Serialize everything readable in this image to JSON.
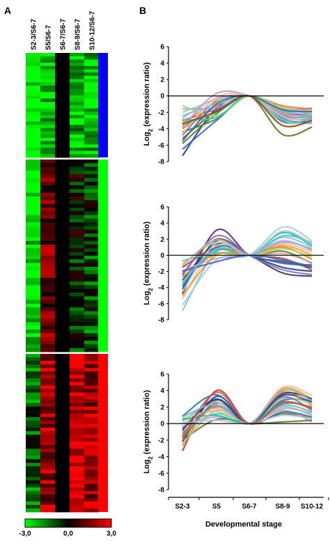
{
  "panel_labels": [
    "A",
    "B"
  ],
  "heatmap": {
    "columns": [
      "S2-3/S6-7",
      "S5/S6-7",
      "S6-7/S6-7",
      "S8-9/S6-7",
      "S10-12/S6-7"
    ],
    "scale": {
      "min_label": "-3,0",
      "mid_label": "0,0",
      "max_label": "3,0",
      "min": -3,
      "max": 3,
      "low_color": "#00ff00",
      "mid_color": "#000000",
      "high_color": "#ff0000"
    },
    "clusters": [
      {
        "bar_color": "#0000ff",
        "rows": 32,
        "profile": [
          -3.2,
          -2.4,
          0,
          -2.2,
          -2.4
        ]
      },
      {
        "bar_color": "#00ff00",
        "rows": 52,
        "profile": [
          -2.8,
          1.2,
          0,
          -0.3,
          -0.8
        ]
      },
      {
        "bar_color": "#ff0000",
        "rows": 45,
        "profile": [
          -1.0,
          2.0,
          0,
          2.5,
          1.8
        ]
      }
    ]
  },
  "chart_data": [
    {
      "type": "line",
      "ylabel": "Log2 (expression ratio)",
      "ylim": [
        -8,
        6
      ],
      "yticks": [
        6,
        4,
        2,
        0,
        -2,
        -4,
        -6,
        -8
      ],
      "categories": [
        "S2-3",
        "S5",
        "S6-7",
        "S8-9",
        "S10-12"
      ],
      "series": [
        {
          "values": [
            -7.3,
            -1.5,
            0,
            -3.0,
            -3.0
          ],
          "color": "#1f3f8f"
        },
        {
          "values": [
            -6.5,
            -3.0,
            0,
            -2.8,
            -3.3
          ],
          "color": "#3a66c4"
        },
        {
          "values": [
            -5.8,
            -2.2,
            0,
            -4.7,
            -3.8
          ],
          "color": "#5e7a2a"
        },
        {
          "values": [
            -5.2,
            -1.8,
            0,
            -2.4,
            -2.6
          ],
          "color": "#c0392b"
        },
        {
          "values": [
            -4.8,
            -0.6,
            0,
            -1.6,
            -1.5
          ],
          "color": "#8e6bbf"
        },
        {
          "values": [
            -4.4,
            -2.8,
            0,
            -2.0,
            -2.4
          ],
          "color": "#2e8b57"
        },
        {
          "values": [
            -4.0,
            -1.2,
            0,
            -1.2,
            -1.6
          ],
          "color": "#e67e22"
        },
        {
          "values": [
            -3.6,
            -2.0,
            0,
            -2.6,
            -2.9
          ],
          "color": "#1abc9c"
        },
        {
          "values": [
            -3.3,
            -0.8,
            0,
            -1.9,
            -2.2
          ],
          "color": "#f39c12"
        },
        {
          "values": [
            -3.0,
            -1.6,
            0,
            -2.2,
            -2.0
          ],
          "color": "#9b59b6"
        },
        {
          "values": [
            -2.7,
            -0.3,
            0,
            -1.4,
            -1.8
          ],
          "color": "#d4a5a5"
        },
        {
          "values": [
            -2.4,
            -1.0,
            0,
            -1.8,
            -2.3
          ],
          "color": "#85c1e9"
        },
        {
          "values": [
            -2.0,
            -0.5,
            0,
            -2.9,
            -3.4
          ],
          "color": "#b0c4de"
        },
        {
          "values": [
            -1.6,
            -1.4,
            0,
            -2.3,
            -2.7
          ],
          "color": "#7fb3d5"
        },
        {
          "values": [
            -1.2,
            -2.4,
            0,
            -1.5,
            -2.1
          ],
          "color": "#a3d977"
        },
        {
          "values": [
            -3.8,
            0.3,
            0,
            -2.1,
            -2.5
          ],
          "color": "#c39bd3"
        },
        {
          "values": [
            -4.6,
            -0.2,
            0,
            -2.5,
            -3.1
          ],
          "color": "#f7b7a3"
        },
        {
          "values": [
            -2.9,
            -2.6,
            0,
            -3.2,
            -2.8
          ],
          "color": "#48c9b0"
        },
        {
          "values": [
            -5.5,
            -1.0,
            0,
            -1.7,
            -1.9
          ],
          "color": "#2874a6"
        },
        {
          "values": [
            -3.4,
            -1.9,
            0,
            -3.6,
            -3.0
          ],
          "color": "#a04000"
        }
      ]
    },
    {
      "type": "line",
      "ylabel": "Log2 (expression ratio)",
      "ylim": [
        -8,
        6
      ],
      "yticks": [
        6,
        4,
        2,
        0,
        -2,
        -4,
        -6,
        -8
      ],
      "categories": [
        "S2-3",
        "S5",
        "S6-7",
        "S8-9",
        "S10-12"
      ],
      "series": [
        {
          "values": [
            -6.9,
            0.4,
            0,
            2.2,
            1.0
          ],
          "color": "#85c1e9"
        },
        {
          "values": [
            -6.2,
            -0.6,
            0,
            3.5,
            1.8
          ],
          "color": "#a9cce3"
        },
        {
          "values": [
            -5.4,
            1.2,
            0,
            1.4,
            0.4
          ],
          "color": "#f7b7a3"
        },
        {
          "values": [
            -4.8,
            3.1,
            0,
            -0.8,
            -1.5
          ],
          "color": "#5b2c6f"
        },
        {
          "values": [
            -4.2,
            1.8,
            0,
            -1.5,
            -2.0
          ],
          "color": "#1f3f8f"
        },
        {
          "values": [
            -3.6,
            0.6,
            0,
            2.8,
            1.2
          ],
          "color": "#1abc9c"
        },
        {
          "values": [
            -3.1,
            1.4,
            0,
            -2.2,
            -2.6
          ],
          "color": "#2e4053"
        },
        {
          "values": [
            -2.7,
            0.2,
            0,
            1.0,
            -0.5
          ],
          "color": "#e67e22"
        },
        {
          "values": [
            -2.3,
            2.0,
            0,
            0.5,
            -1.0
          ],
          "color": "#5e7a2a"
        },
        {
          "values": [
            -1.9,
            -0.4,
            0,
            1.8,
            0.6
          ],
          "color": "#c39bd3"
        },
        {
          "values": [
            -1.5,
            0.9,
            0,
            -0.4,
            -1.8
          ],
          "color": "#c0392b"
        },
        {
          "values": [
            -1.1,
            1.6,
            0,
            0.8,
            -0.2
          ],
          "color": "#a3d977"
        },
        {
          "values": [
            -0.7,
            0.3,
            0,
            2.4,
            1.6
          ],
          "color": "#48c9b0"
        },
        {
          "values": [
            -3.9,
            1.0,
            0,
            -1.0,
            -1.2
          ],
          "color": "#2874a6"
        },
        {
          "values": [
            -2.5,
            2.4,
            0,
            -1.8,
            -2.4
          ],
          "color": "#8e6bbf"
        },
        {
          "values": [
            -5.0,
            0.0,
            0,
            1.2,
            0.0
          ],
          "color": "#f39c12"
        },
        {
          "values": [
            -1.3,
            1.9,
            0,
            0.2,
            -0.9
          ],
          "color": "#d4a5a5"
        },
        {
          "values": [
            -4.5,
            1.5,
            0,
            3.0,
            1.4
          ],
          "color": "#b0c4de"
        },
        {
          "values": [
            -2.0,
            -0.8,
            0,
            -0.6,
            -1.4
          ],
          "color": "#3a66c4"
        },
        {
          "values": [
            -3.3,
            0.8,
            0,
            1.6,
            0.8
          ],
          "color": "#7fb3d5"
        }
      ]
    },
    {
      "type": "line",
      "ylabel": "Log2 (expression ratio)",
      "xlabel": "Developmental stage",
      "ylim": [
        -8,
        6
      ],
      "yticks": [
        6,
        4,
        2,
        0,
        -2,
        -4,
        -6,
        -8
      ],
      "categories": [
        "S2-3",
        "S5",
        "S6-7",
        "S8-9",
        "S10-12"
      ],
      "series": [
        {
          "values": [
            -3.3,
            4.0,
            0,
            2.6,
            1.8
          ],
          "color": "#c0392b"
        },
        {
          "values": [
            -2.7,
            2.8,
            0,
            4.2,
            3.0
          ],
          "color": "#f39c12"
        },
        {
          "values": [
            -2.2,
            3.3,
            0,
            3.4,
            2.6
          ],
          "color": "#1f3f8f"
        },
        {
          "values": [
            -1.8,
            2.5,
            0,
            1.2,
            0.6
          ],
          "color": "#5e7a2a"
        },
        {
          "values": [
            -1.4,
            2.0,
            0,
            3.8,
            2.2
          ],
          "color": "#e67e22"
        },
        {
          "values": [
            -1.0,
            1.2,
            0,
            2.2,
            1.4
          ],
          "color": "#48c9b0"
        },
        {
          "values": [
            -0.6,
            3.0,
            0,
            2.8,
            2.8
          ],
          "color": "#3a66c4"
        },
        {
          "values": [
            -0.3,
            0.8,
            0,
            1.6,
            0.2
          ],
          "color": "#c39bd3"
        },
        {
          "values": [
            0.0,
            1.8,
            0,
            4.4,
            3.4
          ],
          "color": "#f7b7a3"
        },
        {
          "values": [
            0.3,
            2.6,
            0,
            2.0,
            1.0
          ],
          "color": "#85c1e9"
        },
        {
          "values": [
            0.6,
            1.5,
            0,
            3.0,
            2.4
          ],
          "color": "#a3d977"
        },
        {
          "values": [
            0.9,
            3.5,
            0,
            1.4,
            0.8
          ],
          "color": "#2874a6"
        },
        {
          "values": [
            -2.0,
            0.5,
            0,
            0.2,
            0.4
          ],
          "color": "#5e7a2a"
        },
        {
          "values": [
            -1.2,
            2.2,
            0,
            3.2,
            1.6
          ],
          "color": "#8e6bbf"
        },
        {
          "values": [
            0.5,
            1.0,
            0,
            2.5,
            2.0
          ],
          "color": "#1abc9c"
        },
        {
          "values": [
            -0.8,
            2.9,
            0,
            3.6,
            3.0
          ],
          "color": "#2e4053"
        },
        {
          "values": [
            -2.5,
            1.6,
            0,
            1.8,
            1.2
          ],
          "color": "#d4a5a5"
        },
        {
          "values": [
            0.1,
            0.4,
            0,
            1.0,
            0.6
          ],
          "color": "#b0c4de"
        },
        {
          "values": [
            -1.6,
            3.8,
            0,
            2.4,
            2.0
          ],
          "color": "#e74c3c"
        },
        {
          "values": [
            0.8,
            2.3,
            0,
            4.0,
            2.8
          ],
          "color": "#7fb3d5"
        }
      ]
    }
  ]
}
